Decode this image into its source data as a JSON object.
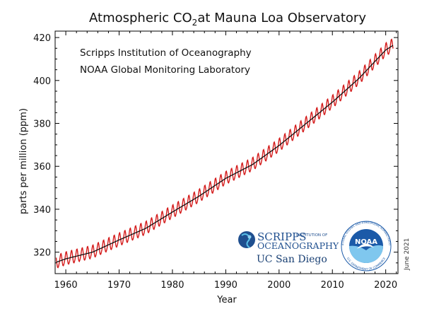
{
  "chart_data": {
    "type": "line",
    "title": "Atmospheric CO",
    "title_subscript": "2",
    "title_suffix": "at Mauna Loa Observatory",
    "institutions": [
      "Scripps Institution of Oceanography",
      "NOAA Global Monitoring Laboratory"
    ],
    "xlabel": "Year",
    "ylabel": "parts per million (ppm)",
    "xlim": [
      1958,
      2022.3
    ],
    "ylim": [
      310,
      423
    ],
    "xticks": [
      1960,
      1970,
      1980,
      1990,
      2000,
      2010,
      2020
    ],
    "yticks": [
      320,
      340,
      360,
      380,
      400,
      420
    ],
    "grid": false,
    "series": [
      {
        "name": "",
        "style": "monthly mean (seasonal cycle)",
        "color": "#d41c1c",
        "seasonal_amplitude_ppm": 3.0,
        "x": [
          1958.2,
          1960,
          1965,
          1970,
          1975,
          1980,
          1985,
          1990,
          1995,
          2000,
          2005,
          2010,
          2015,
          2020,
          2021.4
        ],
        "y": [
          315.3,
          316.9,
          320.0,
          325.7,
          331.1,
          338.7,
          346.1,
          354.4,
          360.8,
          369.7,
          379.8,
          389.9,
          401.0,
          414.2,
          416.4
        ]
      },
      {
        "name": "",
        "style": "seasonally adjusted trend",
        "color": "#111111",
        "x": [
          1958.2,
          1960,
          1965,
          1970,
          1975,
          1980,
          1985,
          1990,
          1995,
          2000,
          2005,
          2010,
          2015,
          2020,
          2021.4
        ],
        "y": [
          315.3,
          316.9,
          320.0,
          325.7,
          331.1,
          338.7,
          346.1,
          354.4,
          360.8,
          369.7,
          379.8,
          389.9,
          401.0,
          414.2,
          416.4
        ]
      }
    ],
    "annotations": {
      "logo_scripps": [
        "SCRIPPS",
        "INSTITUTION OF",
        "OCEANOGRAPHY",
        "UC San Diego"
      ],
      "logo_noaa": [
        "NOAA",
        "NATIONAL OCEANIC AND ATMOSPHERIC ADMINISTRATION",
        "U.S. DEPARTMENT OF COMMERCE"
      ],
      "date_stamp": "June 2021"
    }
  },
  "colors": {
    "monthly": "#d41c1c",
    "trend": "#111111",
    "scripps_blue": "#1f4f8f",
    "noaa_blue": "#1b5aa8"
  },
  "icons": [
    "scripps-globe-icon",
    "noaa-seal-icon"
  ]
}
